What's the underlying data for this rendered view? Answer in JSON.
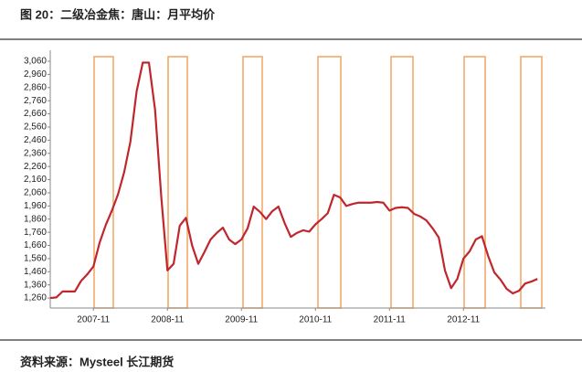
{
  "title": "图 20：二级冶金焦：唐山：月平均价",
  "source": "资料来源：Mysteel 长江期货",
  "chart_data": {
    "type": "line",
    "categories": [
      null,
      null,
      null,
      null,
      null,
      null,
      null,
      "2007-11",
      null,
      null,
      null,
      null,
      null,
      null,
      null,
      null,
      null,
      null,
      null,
      "2008-11",
      null,
      null,
      null,
      null,
      null,
      null,
      null,
      null,
      null,
      null,
      null,
      "2009-11",
      null,
      null,
      null,
      null,
      null,
      null,
      null,
      null,
      null,
      null,
      null,
      "2010-11",
      null,
      null,
      null,
      null,
      null,
      null,
      null,
      null,
      null,
      null,
      null,
      "2011-11",
      null,
      null,
      null,
      null,
      null,
      null,
      null,
      null,
      null,
      null,
      null,
      "2012-11",
      null,
      null,
      null,
      null,
      null,
      null,
      null,
      null,
      null,
      null,
      null,
      null
    ],
    "series": [
      {
        "name": "二级冶金焦：唐山：月平均价",
        "color": "#c0262d",
        "values": [
          1260,
          1265,
          1310,
          1310,
          1310,
          1390,
          1440,
          1500,
          1680,
          1815,
          1925,
          2050,
          2220,
          2450,
          2830,
          3050,
          3050,
          2690,
          2030,
          1470,
          1520,
          1810,
          1870,
          1660,
          1520,
          1610,
          1705,
          1755,
          1795,
          1705,
          1670,
          1705,
          1790,
          1955,
          1915,
          1860,
          1920,
          1955,
          1830,
          1725,
          1755,
          1775,
          1765,
          1820,
          1860,
          1905,
          2045,
          2025,
          1960,
          1975,
          1985,
          1985,
          1985,
          1990,
          1985,
          1925,
          1945,
          1950,
          1945,
          1900,
          1880,
          1850,
          1790,
          1720,
          1470,
          1335,
          1405,
          1560,
          1615,
          1705,
          1730,
          1580,
          1455,
          1400,
          1330,
          1295,
          1315,
          1370,
          1385,
          1405
        ]
      }
    ],
    "ylim": [
      1184,
      3095
    ],
    "yticks": [
      {
        "value": 1260,
        "label": "1,260"
      },
      {
        "value": 1360,
        "label": "1,360"
      },
      {
        "value": 1460,
        "label": "1,460"
      },
      {
        "value": 1560,
        "label": "1,560"
      },
      {
        "value": 1660,
        "label": "1,660"
      },
      {
        "value": 1760,
        "label": "1,760"
      },
      {
        "value": 1860,
        "label": "1,860"
      },
      {
        "value": 1960,
        "label": "1,960"
      },
      {
        "value": 2060,
        "label": "2,060"
      },
      {
        "value": 2160,
        "label": "2,160"
      },
      {
        "value": 2260,
        "label": "2,260"
      },
      {
        "value": 2360,
        "label": "2,360"
      },
      {
        "value": 2460,
        "label": "2,460"
      },
      {
        "value": 2560,
        "label": "2,560"
      },
      {
        "value": 2660,
        "label": "2,660"
      },
      {
        "value": 2760,
        "label": "2,760"
      },
      {
        "value": 2860,
        "label": "2,860"
      },
      {
        "value": 2960,
        "label": "2,960"
      },
      {
        "value": 3060,
        "label": "3,060"
      }
    ],
    "grid": false
  }
}
